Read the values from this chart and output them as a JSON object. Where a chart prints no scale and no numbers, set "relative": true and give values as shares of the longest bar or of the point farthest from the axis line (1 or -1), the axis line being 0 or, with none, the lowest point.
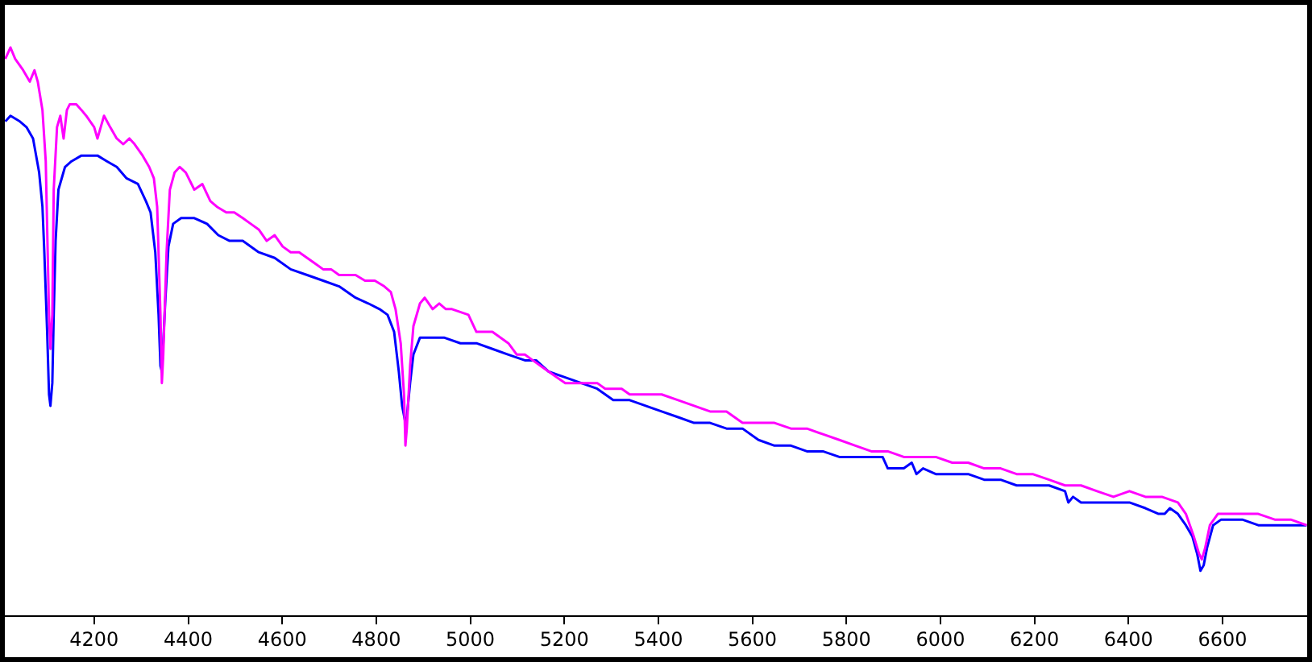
{
  "chart_data": {
    "type": "line",
    "relative": true,
    "xlim": [
      4010,
      6780
    ],
    "xticks": [
      4200,
      4400,
      4600,
      4800,
      5000,
      5200,
      5400,
      5600,
      5800,
      6000,
      6200,
      6400,
      6600
    ],
    "grid": false,
    "legend": false,
    "marker": "none",
    "line_style": "solid",
    "tick_labels": "x",
    "series": [
      {
        "color": "#ff00ff",
        "x": [
          4011,
          4022,
          4032,
          4049,
          4063,
          4073,
          4080,
          4090,
          4097,
          4104,
          4107,
          4111,
          4114,
          4121,
          4128,
          4135,
          4142,
          4148,
          4162,
          4173,
          4183,
          4200,
          4207,
          4214,
          4221,
          4234,
          4248,
          4262,
          4275,
          4286,
          4303,
          4317,
          4327,
          4334,
          4341,
          4344,
          4347,
          4354,
          4361,
          4371,
          4382,
          4395,
          4413,
          4430,
          4447,
          4461,
          4481,
          4498,
          4516,
          4533,
          4550,
          4567,
          4584,
          4601,
          4618,
          4636,
          4653,
          4670,
          4687,
          4704,
          4721,
          4738,
          4756,
          4776,
          4797,
          4817,
          4831,
          4841,
          4852,
          4859,
          4862,
          4865,
          4872,
          4879,
          4893,
          4903,
          4920,
          4934,
          4948,
          4961,
          4996,
          5013,
          5047,
          5081,
          5099,
          5116,
          5133,
          5150,
          5167,
          5184,
          5202,
          5219,
          5236,
          5253,
          5270,
          5287,
          5304,
          5322,
          5339,
          5373,
          5407,
          5442,
          5476,
          5510,
          5545,
          5579,
          5613,
          5647,
          5682,
          5716,
          5750,
          5785,
          5819,
          5853,
          5888,
          5922,
          5956,
          5990,
          6025,
          6059,
          6093,
          6128,
          6162,
          6196,
          6231,
          6265,
          6299,
          6333,
          6368,
          6402,
          6436,
          6471,
          6505,
          6522,
          6539,
          6550,
          6556,
          6563,
          6573,
          6590,
          6608,
          6642,
          6676,
          6711,
          6745,
          6779
        ],
        "values": [
          0.98,
          1.0,
          0.98,
          0.96,
          0.94,
          0.96,
          0.94,
          0.89,
          0.8,
          0.53,
          0.47,
          0.53,
          0.75,
          0.86,
          0.88,
          0.84,
          0.89,
          0.9,
          0.9,
          0.89,
          0.88,
          0.86,
          0.84,
          0.86,
          0.88,
          0.86,
          0.84,
          0.83,
          0.84,
          0.83,
          0.81,
          0.79,
          0.77,
          0.72,
          0.53,
          0.41,
          0.46,
          0.64,
          0.75,
          0.78,
          0.79,
          0.78,
          0.75,
          0.76,
          0.73,
          0.72,
          0.71,
          0.71,
          0.7,
          0.69,
          0.68,
          0.66,
          0.67,
          0.65,
          0.64,
          0.64,
          0.63,
          0.62,
          0.61,
          0.61,
          0.6,
          0.6,
          0.6,
          0.59,
          0.59,
          0.58,
          0.57,
          0.54,
          0.48,
          0.39,
          0.3,
          0.33,
          0.44,
          0.51,
          0.55,
          0.56,
          0.54,
          0.55,
          0.54,
          0.54,
          0.53,
          0.5,
          0.5,
          0.48,
          0.46,
          0.46,
          0.45,
          0.44,
          0.43,
          0.42,
          0.41,
          0.41,
          0.41,
          0.41,
          0.41,
          0.4,
          0.4,
          0.4,
          0.39,
          0.39,
          0.39,
          0.38,
          0.37,
          0.36,
          0.36,
          0.34,
          0.34,
          0.34,
          0.33,
          0.33,
          0.32,
          0.31,
          0.3,
          0.29,
          0.29,
          0.28,
          0.28,
          0.28,
          0.27,
          0.27,
          0.26,
          0.26,
          0.25,
          0.25,
          0.24,
          0.23,
          0.23,
          0.22,
          0.21,
          0.22,
          0.21,
          0.21,
          0.2,
          0.18,
          0.14,
          0.11,
          0.1,
          0.12,
          0.16,
          0.18,
          0.18,
          0.18,
          0.18,
          0.17,
          0.17,
          0.16
        ]
      },
      {
        "color": "#0000ff",
        "x": [
          4011,
          4022,
          4042,
          4056,
          4070,
          4083,
          4090,
          4094,
          4100,
          4104,
          4107,
          4111,
          4114,
          4118,
          4124,
          4138,
          4152,
          4173,
          4197,
          4207,
          4227,
          4248,
          4269,
          4293,
          4310,
          4320,
          4330,
          4337,
          4341,
          4344,
          4351,
          4358,
          4368,
          4385,
          4413,
          4440,
          4464,
          4488,
          4516,
          4550,
          4584,
          4618,
          4653,
          4687,
          4721,
          4756,
          4783,
          4807,
          4824,
          4838,
          4848,
          4855,
          4862,
          4865,
          4872,
          4879,
          4893,
          4910,
          4944,
          4979,
          5013,
          5047,
          5081,
          5116,
          5140,
          5167,
          5202,
          5236,
          5270,
          5304,
          5339,
          5373,
          5407,
          5442,
          5476,
          5510,
          5545,
          5579,
          5613,
          5647,
          5682,
          5716,
          5750,
          5785,
          5819,
          5853,
          5877,
          5888,
          5898,
          5908,
          5922,
          5939,
          5949,
          5963,
          5990,
          6025,
          6059,
          6093,
          6128,
          6162,
          6196,
          6231,
          6265,
          6272,
          6282,
          6299,
          6333,
          6368,
          6402,
          6436,
          6464,
          6477,
          6488,
          6505,
          6522,
          6536,
          6546,
          6553,
          6560,
          6567,
          6580,
          6597,
          6615,
          6642,
          6676,
          6711,
          6745,
          6779
        ],
        "values": [
          0.87,
          0.88,
          0.87,
          0.86,
          0.84,
          0.78,
          0.72,
          0.64,
          0.5,
          0.39,
          0.37,
          0.41,
          0.53,
          0.66,
          0.75,
          0.79,
          0.8,
          0.81,
          0.81,
          0.81,
          0.8,
          0.79,
          0.77,
          0.76,
          0.73,
          0.71,
          0.64,
          0.53,
          0.44,
          0.43,
          0.55,
          0.65,
          0.69,
          0.7,
          0.7,
          0.69,
          0.67,
          0.66,
          0.66,
          0.64,
          0.63,
          0.61,
          0.6,
          0.59,
          0.58,
          0.56,
          0.55,
          0.54,
          0.53,
          0.5,
          0.43,
          0.37,
          0.34,
          0.35,
          0.41,
          0.46,
          0.49,
          0.49,
          0.49,
          0.48,
          0.48,
          0.47,
          0.46,
          0.45,
          0.45,
          0.43,
          0.42,
          0.41,
          0.4,
          0.38,
          0.38,
          0.37,
          0.36,
          0.35,
          0.34,
          0.34,
          0.33,
          0.33,
          0.31,
          0.3,
          0.3,
          0.29,
          0.29,
          0.28,
          0.28,
          0.28,
          0.28,
          0.26,
          0.26,
          0.26,
          0.26,
          0.27,
          0.25,
          0.26,
          0.25,
          0.25,
          0.25,
          0.24,
          0.24,
          0.23,
          0.23,
          0.23,
          0.22,
          0.2,
          0.21,
          0.2,
          0.2,
          0.2,
          0.2,
          0.19,
          0.18,
          0.18,
          0.19,
          0.18,
          0.16,
          0.14,
          0.11,
          0.08,
          0.09,
          0.12,
          0.16,
          0.17,
          0.17,
          0.17,
          0.16,
          0.16,
          0.16,
          0.16
        ]
      }
    ]
  }
}
